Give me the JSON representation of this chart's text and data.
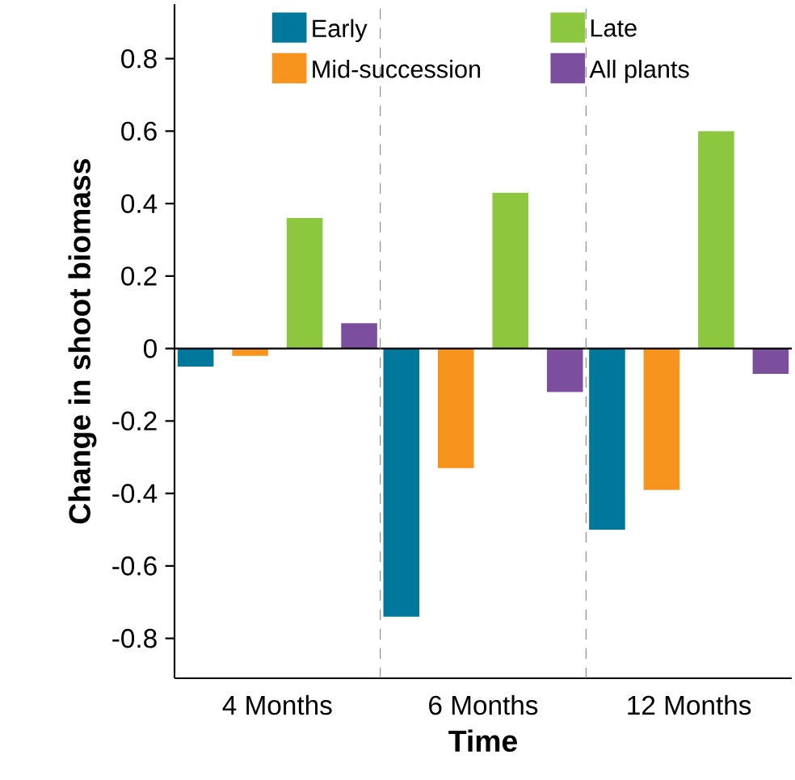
{
  "chart_data": {
    "type": "bar",
    "xlabel": "Time",
    "ylabel": "Change in shoot biomass",
    "categories": [
      "4 Months",
      "6 Months",
      "12 Months"
    ],
    "series": [
      {
        "name": "Early",
        "color": "#00789c",
        "values": [
          -0.05,
          -0.74,
          -0.5
        ]
      },
      {
        "name": "Mid-succession",
        "color": "#f7941d",
        "values": [
          -0.02,
          -0.33,
          -0.39
        ]
      },
      {
        "name": "Late",
        "color": "#8dc63f",
        "values": [
          0.36,
          0.43,
          0.6
        ]
      },
      {
        "name": "All plants",
        "color": "#7b4f9e",
        "values": [
          0.07,
          -0.12,
          -0.07
        ]
      }
    ],
    "ylim": [
      -0.91,
      0.95
    ],
    "yticks": [
      -0.8,
      -0.6,
      -0.4,
      -0.2,
      0,
      0.2,
      0.4,
      0.6,
      0.8
    ],
    "ref_lines": [
      {
        "axis": "y",
        "value": 0,
        "line_style": "solid",
        "color": "#000000"
      }
    ],
    "legend": "top",
    "grid": false
  }
}
